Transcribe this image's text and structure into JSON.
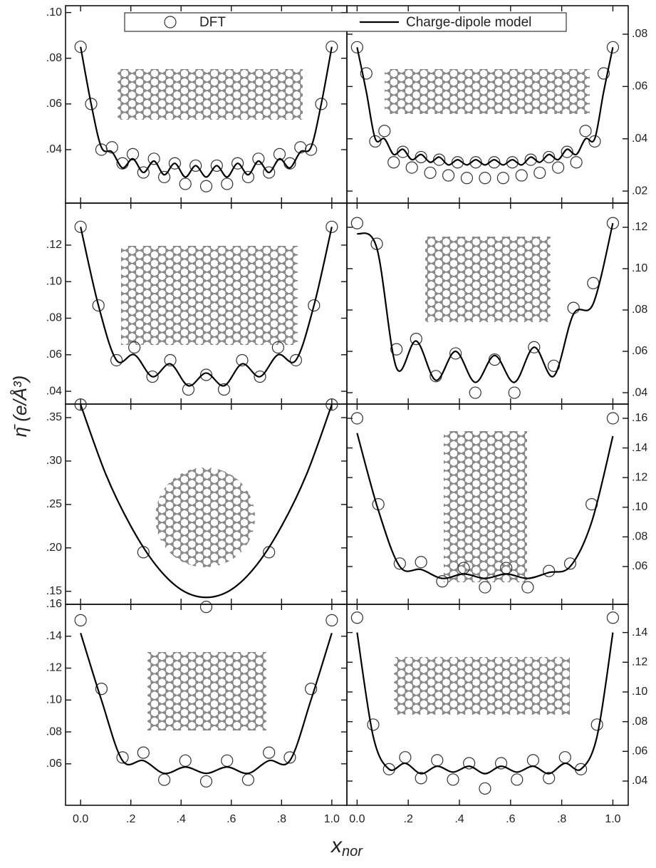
{
  "figure": {
    "ylabel": "η̄ (e/Å³)",
    "xlabel": "x",
    "xlabel_subscript": "nor"
  },
  "chart_data": [
    {
      "type": "line",
      "y_axis": "left",
      "xlim": [
        -0.06,
        1.06
      ],
      "ylim": [
        0.0166,
        0.103
      ],
      "yticks": [
        {
          "value": 0.04,
          "label": ".04"
        },
        {
          "value": 0.06,
          "label": ".06"
        },
        {
          "value": 0.08,
          "label": ".08"
        },
        {
          "value": 0.1,
          "label": ".10"
        }
      ],
      "series": [
        {
          "name": "DFT",
          "style": "marker",
          "color": "#333333",
          "x": [
            0,
            0.042,
            0.083,
            0.125,
            0.167,
            0.208,
            0.25,
            0.292,
            0.333,
            0.375,
            0.417,
            0.458,
            0.5,
            0.542,
            0.583,
            0.625,
            0.667,
            0.708,
            0.75,
            0.792,
            0.833,
            0.875,
            0.917,
            0.958,
            1
          ],
          "values": [
            0.085,
            0.06,
            0.04,
            0.041,
            0.034,
            0.038,
            0.03,
            0.036,
            0.028,
            0.034,
            0.025,
            0.033,
            0.024,
            0.033,
            0.025,
            0.034,
            0.028,
            0.036,
            0.03,
            0.038,
            0.034,
            0.041,
            0.04,
            0.06,
            0.085
          ]
        },
        {
          "name": "Charge-dipole model",
          "style": "line",
          "color": "#000000",
          "x": [
            0,
            0.042,
            0.083,
            0.125,
            0.167,
            0.208,
            0.25,
            0.292,
            0.333,
            0.375,
            0.417,
            0.458,
            0.5,
            0.542,
            0.583,
            0.625,
            0.667,
            0.708,
            0.75,
            0.792,
            0.833,
            0.875,
            0.917,
            0.958,
            1
          ],
          "values": [
            0.085,
            0.06,
            0.041,
            0.039,
            0.032,
            0.036,
            0.03,
            0.035,
            0.029,
            0.034,
            0.028,
            0.033,
            0.028,
            0.033,
            0.028,
            0.034,
            0.029,
            0.035,
            0.03,
            0.036,
            0.032,
            0.039,
            0.041,
            0.06,
            0.085
          ]
        }
      ]
    },
    {
      "type": "line",
      "y_axis": "right",
      "xlim": [
        -0.04,
        1.06
      ],
      "ylim": [
        0.0154,
        0.0909
      ],
      "yticks": [
        {
          "value": 0.02,
          "label": ".02"
        },
        {
          "value": 0.04,
          "label": ".04"
        },
        {
          "value": 0.06,
          "label": ".06"
        },
        {
          "value": 0.08,
          "label": ".08"
        }
      ],
      "series": [
        {
          "name": "DFT",
          "style": "marker",
          "color": "#333333",
          "x": [
            0,
            0.036,
            0.071,
            0.107,
            0.143,
            0.179,
            0.214,
            0.25,
            0.286,
            0.321,
            0.357,
            0.393,
            0.429,
            0.464,
            0.5,
            0.536,
            0.571,
            0.607,
            0.643,
            0.679,
            0.714,
            0.75,
            0.786,
            0.821,
            0.857,
            0.893,
            0.929,
            0.964,
            1
          ],
          "values": [
            0.075,
            0.065,
            0.039,
            0.043,
            0.031,
            0.035,
            0.029,
            0.033,
            0.027,
            0.032,
            0.026,
            0.031,
            0.025,
            0.031,
            0.025,
            0.031,
            0.025,
            0.031,
            0.026,
            0.032,
            0.027,
            0.033,
            0.029,
            0.035,
            0.031,
            0.043,
            0.039,
            0.065,
            0.075
          ]
        },
        {
          "name": "Charge-dipole model",
          "style": "line",
          "color": "#000000",
          "x": [
            0,
            0.036,
            0.071,
            0.107,
            0.143,
            0.179,
            0.214,
            0.25,
            0.286,
            0.321,
            0.357,
            0.393,
            0.429,
            0.464,
            0.5,
            0.536,
            0.571,
            0.607,
            0.643,
            0.679,
            0.714,
            0.75,
            0.786,
            0.821,
            0.857,
            0.893,
            0.929,
            0.964,
            1
          ],
          "values": [
            0.075,
            0.058,
            0.04,
            0.04,
            0.034,
            0.036,
            0.032,
            0.034,
            0.031,
            0.033,
            0.03,
            0.032,
            0.03,
            0.032,
            0.03,
            0.032,
            0.03,
            0.032,
            0.03,
            0.033,
            0.031,
            0.034,
            0.032,
            0.036,
            0.034,
            0.04,
            0.04,
            0.058,
            0.075
          ]
        }
      ]
    },
    {
      "type": "line",
      "y_axis": "left",
      "xlim": [
        -0.06,
        1.06
      ],
      "ylim": [
        0.033,
        0.143
      ],
      "yticks": [
        {
          "value": 0.04,
          "label": ".04"
        },
        {
          "value": 0.06,
          "label": ".06"
        },
        {
          "value": 0.08,
          "label": ".08"
        },
        {
          "value": 0.1,
          "label": ".10"
        },
        {
          "value": 0.12,
          "label": ".12"
        }
      ],
      "series": [
        {
          "name": "DFT",
          "style": "marker",
          "color": "#333333",
          "x": [
            0,
            0.071,
            0.143,
            0.214,
            0.286,
            0.357,
            0.429,
            0.5,
            0.571,
            0.643,
            0.714,
            0.786,
            0.857,
            0.929,
            1
          ],
          "values": [
            0.13,
            0.087,
            0.057,
            0.064,
            0.048,
            0.057,
            0.041,
            0.049,
            0.041,
            0.057,
            0.048,
            0.064,
            0.057,
            0.087,
            0.13
          ]
        },
        {
          "name": "Charge-dipole model",
          "style": "line",
          "color": "#000000",
          "x": [
            0,
            0.071,
            0.143,
            0.214,
            0.286,
            0.357,
            0.429,
            0.5,
            0.571,
            0.643,
            0.714,
            0.786,
            0.857,
            0.929,
            1
          ],
          "values": [
            0.13,
            0.087,
            0.057,
            0.06,
            0.048,
            0.055,
            0.043,
            0.05,
            0.043,
            0.055,
            0.048,
            0.06,
            0.057,
            0.087,
            0.13
          ]
        }
      ]
    },
    {
      "type": "line",
      "y_axis": "right",
      "xlim": [
        -0.04,
        1.06
      ],
      "ylim": [
        0.0345,
        0.1317
      ],
      "yticks": [
        {
          "value": 0.04,
          "label": ".04"
        },
        {
          "value": 0.06,
          "label": ".06"
        },
        {
          "value": 0.08,
          "label": ".08"
        },
        {
          "value": 0.1,
          "label": ".10"
        },
        {
          "value": 0.12,
          "label": ".12"
        }
      ],
      "series": [
        {
          "name": "DFT",
          "style": "marker",
          "color": "#333333",
          "x": [
            0,
            0.077,
            0.154,
            0.231,
            0.308,
            0.385,
            0.462,
            0.538,
            0.615,
            0.692,
            0.769,
            0.846,
            0.923,
            1
          ],
          "values": [
            0.122,
            0.112,
            0.061,
            0.066,
            0.048,
            0.059,
            0.04,
            0.056,
            0.04,
            0.062,
            0.053,
            0.081,
            0.093,
            0.122
          ]
        },
        {
          "name": "Charge-dipole model",
          "style": "line",
          "color": "#000000",
          "x": [
            0,
            0.077,
            0.154,
            0.231,
            0.308,
            0.385,
            0.462,
            0.538,
            0.615,
            0.692,
            0.769,
            0.846,
            0.923,
            1
          ],
          "values": [
            0.117,
            0.11,
            0.052,
            0.065,
            0.046,
            0.06,
            0.045,
            0.058,
            0.045,
            0.062,
            0.048,
            0.078,
            0.083,
            0.122
          ]
        }
      ]
    },
    {
      "type": "line",
      "y_axis": "left",
      "xlim": [
        -0.06,
        1.06
      ],
      "ylim": [
        0.135,
        0.3656
      ],
      "yticks": [
        {
          "value": 0.15,
          "label": ".15"
        },
        {
          "value": 0.2,
          "label": ".20"
        },
        {
          "value": 0.25,
          "label": ".25"
        },
        {
          "value": 0.3,
          "label": ".30"
        },
        {
          "value": 0.35,
          "label": ".35"
        }
      ],
      "series": [
        {
          "name": "DFT",
          "style": "marker",
          "color": "#333333",
          "x": [
            0,
            0.25,
            0.5,
            0.75,
            1
          ],
          "values": [
            0.365,
            0.195,
            0.132,
            0.195,
            0.365
          ]
        },
        {
          "name": "Charge-dipole model",
          "style": "line",
          "color": "#000000",
          "x": [
            0,
            0.1,
            0.2,
            0.3,
            0.4,
            0.5,
            0.6,
            0.7,
            0.8,
            0.9,
            1
          ],
          "values": [
            0.365,
            0.285,
            0.225,
            0.18,
            0.152,
            0.143,
            0.152,
            0.18,
            0.225,
            0.285,
            0.365
          ]
        }
      ]
    },
    {
      "type": "line",
      "y_axis": "right",
      "xlim": [
        -0.04,
        1.06
      ],
      "ylim": [
        0.0345,
        0.1696
      ],
      "yticks": [
        {
          "value": 0.06,
          "label": ".06"
        },
        {
          "value": 0.08,
          "label": ".08"
        },
        {
          "value": 0.1,
          "label": ".10"
        },
        {
          "value": 0.12,
          "label": ".12"
        },
        {
          "value": 0.14,
          "label": ".14"
        },
        {
          "value": 0.16,
          "label": ".16"
        }
      ],
      "series": [
        {
          "name": "DFT",
          "style": "marker",
          "color": "#333333",
          "x": [
            0,
            0.083,
            0.167,
            0.25,
            0.333,
            0.417,
            0.5,
            0.583,
            0.667,
            0.75,
            0.833,
            0.917,
            1
          ],
          "values": [
            0.16,
            0.102,
            0.062,
            0.063,
            0.05,
            0.059,
            0.046,
            0.059,
            0.046,
            0.057,
            0.062,
            0.102,
            0.16
          ]
        },
        {
          "name": "Charge-dipole model",
          "style": "line",
          "color": "#000000",
          "x": [
            0,
            0.083,
            0.167,
            0.25,
            0.333,
            0.417,
            0.5,
            0.583,
            0.667,
            0.75,
            0.833,
            0.917,
            1
          ],
          "values": [
            0.15,
            0.098,
            0.06,
            0.058,
            0.052,
            0.055,
            0.052,
            0.055,
            0.052,
            0.056,
            0.06,
            0.09,
            0.148
          ]
        }
      ]
    },
    {
      "type": "line",
      "y_axis": "left",
      "xlim": [
        -0.06,
        1.06
      ],
      "ylim": [
        0.034,
        0.16
      ],
      "xticks": [
        {
          "value": 0,
          "label": "0.0"
        },
        {
          "value": 0.2,
          "label": ".2"
        },
        {
          "value": 0.4,
          "label": ".4"
        },
        {
          "value": 0.6,
          "label": ".6"
        },
        {
          "value": 0.8,
          "label": ".8"
        },
        {
          "value": 1,
          "label": "1.0"
        }
      ],
      "yticks": [
        {
          "value": 0.06,
          "label": ".06"
        },
        {
          "value": 0.08,
          "label": ".08"
        },
        {
          "value": 0.1,
          "label": ".10"
        },
        {
          "value": 0.12,
          "label": ".12"
        },
        {
          "value": 0.14,
          "label": ".14"
        },
        {
          "value": 0.16,
          "label": ".16"
        }
      ],
      "series": [
        {
          "name": "DFT",
          "style": "marker",
          "color": "#333333",
          "x": [
            0,
            0.083,
            0.167,
            0.25,
            0.333,
            0.417,
            0.5,
            0.583,
            0.667,
            0.75,
            0.833,
            0.917,
            1
          ],
          "values": [
            0.15,
            0.107,
            0.064,
            0.067,
            0.05,
            0.062,
            0.049,
            0.062,
            0.05,
            0.067,
            0.064,
            0.107,
            0.15
          ]
        },
        {
          "name": "Charge-dipole model",
          "style": "line",
          "color": "#000000",
          "x": [
            0,
            0.083,
            0.167,
            0.25,
            0.333,
            0.417,
            0.5,
            0.583,
            0.667,
            0.75,
            0.833,
            0.917,
            1
          ],
          "values": [
            0.142,
            0.1,
            0.062,
            0.062,
            0.054,
            0.058,
            0.054,
            0.058,
            0.054,
            0.062,
            0.062,
            0.1,
            0.142
          ]
        }
      ]
    },
    {
      "type": "line",
      "y_axis": "right",
      "xlim": [
        -0.04,
        1.06
      ],
      "ylim": [
        0.0237,
        0.159
      ],
      "xticks": [
        {
          "value": 0,
          "label": "0.0"
        },
        {
          "value": 0.2,
          "label": ".2"
        },
        {
          "value": 0.4,
          "label": ".4"
        },
        {
          "value": 0.6,
          "label": ".6"
        },
        {
          "value": 0.8,
          "label": ".8"
        },
        {
          "value": 1,
          "label": "1.0"
        }
      ],
      "yticks": [
        {
          "value": 0.04,
          "label": ".04"
        },
        {
          "value": 0.06,
          "label": ".06"
        },
        {
          "value": 0.08,
          "label": ".08"
        },
        {
          "value": 0.1,
          "label": ".10"
        },
        {
          "value": 0.12,
          "label": ".12"
        },
        {
          "value": 0.14,
          "label": ".14"
        }
      ],
      "series": [
        {
          "name": "DFT",
          "style": "marker",
          "color": "#333333",
          "x": [
            0,
            0.063,
            0.125,
            0.188,
            0.25,
            0.313,
            0.375,
            0.438,
            0.5,
            0.563,
            0.625,
            0.688,
            0.75,
            0.813,
            0.875,
            0.938,
            1
          ],
          "values": [
            0.15,
            0.078,
            0.048,
            0.056,
            0.042,
            0.054,
            0.041,
            0.052,
            0.035,
            0.052,
            0.041,
            0.054,
            0.042,
            0.056,
            0.048,
            0.078,
            0.15
          ]
        },
        {
          "name": "Charge-dipole model",
          "style": "line",
          "color": "#000000",
          "x": [
            0,
            0.063,
            0.125,
            0.188,
            0.25,
            0.313,
            0.375,
            0.438,
            0.5,
            0.563,
            0.625,
            0.688,
            0.75,
            0.813,
            0.875,
            0.938,
            1
          ],
          "values": [
            0.14,
            0.07,
            0.048,
            0.052,
            0.045,
            0.05,
            0.046,
            0.05,
            0.045,
            0.05,
            0.046,
            0.05,
            0.045,
            0.052,
            0.048,
            0.07,
            0.14
          ]
        }
      ]
    }
  ]
}
